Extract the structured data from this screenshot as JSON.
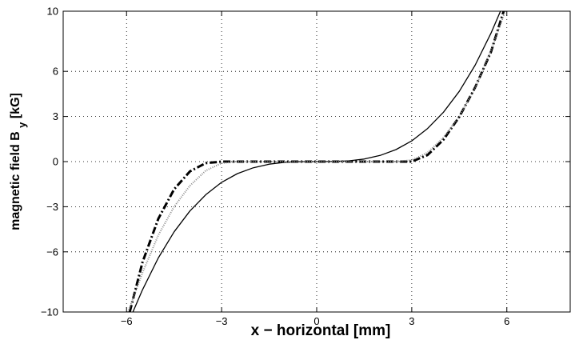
{
  "chart_data": {
    "type": "line",
    "xlabel": "x − horizontal [mm]",
    "ylabel": {
      "main": "magnetic field B",
      "subscript": "y",
      "unit": "[kG]"
    },
    "xlim": [
      -8,
      8
    ],
    "ylim": [
      -10,
      10
    ],
    "xticks": [
      -6,
      -3,
      0,
      3,
      6
    ],
    "yticks": [
      -10,
      -6,
      -3,
      0,
      3,
      6,
      10
    ],
    "xtick_labels": [
      "−6",
      "−3",
      "0",
      "3",
      "6"
    ],
    "ytick_labels": [
      "−10",
      "−6",
      "−3",
      "0",
      "3",
      "6",
      "10"
    ],
    "grid": true,
    "grid_style": "dotted",
    "series": [
      {
        "style": "solid",
        "color": "#000000",
        "x": [
          -5.8,
          -5.5,
          -5.0,
          -4.5,
          -4.0,
          -3.5,
          -3.0,
          -2.5,
          -2.0,
          -1.5,
          -1.0,
          -0.5,
          0.0,
          0.5,
          1.0,
          1.5,
          2.0,
          2.5,
          3.0,
          3.5,
          4.0,
          4.5,
          5.0,
          5.5,
          5.8
        ],
        "y": [
          -10.0,
          -8.53,
          -6.41,
          -4.67,
          -3.28,
          -2.2,
          -1.38,
          -0.8,
          -0.41,
          -0.17,
          -0.05,
          -0.01,
          0.0,
          0.01,
          0.05,
          0.17,
          0.41,
          0.8,
          1.38,
          2.2,
          3.28,
          4.67,
          6.41,
          8.53,
          10.0
        ]
      },
      {
        "style": "dashdot",
        "color": "#000000",
        "x": [
          -5.9,
          -5.5,
          -5.0,
          -4.5,
          -4.0,
          -3.5,
          -3.0,
          -2.5,
          -2.0,
          -1.5,
          -1.0,
          0.0,
          1.0,
          1.5,
          2.0,
          2.5,
          3.0,
          3.5,
          4.0,
          4.5,
          5.0,
          5.5,
          5.9
        ],
        "y": [
          -10.0,
          -6.71,
          -3.81,
          -1.84,
          -0.65,
          -0.1,
          0.0,
          0.0,
          0.0,
          0.0,
          0.0,
          0.0,
          0.0,
          0.0,
          0.0,
          0.0,
          0.0,
          0.44,
          1.46,
          2.98,
          4.93,
          7.29,
          10.0
        ]
      },
      {
        "style": "dotted",
        "color": "#888888",
        "x": [
          -5.95,
          -5.5,
          -5.0,
          -4.5,
          -4.0,
          -3.5,
          -3.0,
          -2.5,
          -2.0,
          -1.5,
          -1.0,
          0.0,
          1.0,
          1.5,
          2.0,
          2.5,
          3.0,
          3.5,
          4.0,
          4.5,
          5.0,
          5.5,
          5.95
        ],
        "y": [
          -10.0,
          -7.4,
          -4.9,
          -3.0,
          -1.6,
          -0.6,
          -0.1,
          0.0,
          0.0,
          0.0,
          0.0,
          0.0,
          0.0,
          0.0,
          0.0,
          0.0,
          0.1,
          0.6,
          1.6,
          3.0,
          4.9,
          7.4,
          10.0
        ]
      }
    ]
  }
}
